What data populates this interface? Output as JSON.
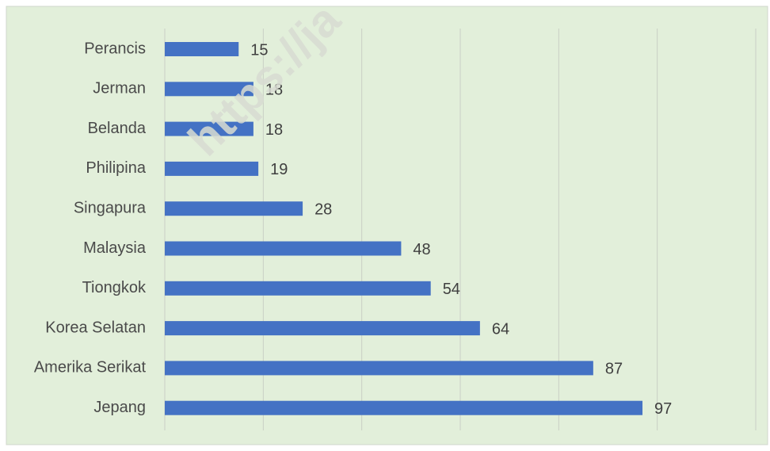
{
  "chart_data": {
    "type": "bar",
    "orientation": "horizontal",
    "categories": [
      "Perancis",
      "Jerman",
      "Belanda",
      "Philipina",
      "Singapura",
      "Malaysia",
      "Tiongkok",
      "Korea Selatan",
      "Amerika Serikat",
      "Jepang"
    ],
    "values": [
      15,
      18,
      18,
      19,
      28,
      48,
      54,
      64,
      87,
      97
    ],
    "xlim": [
      0,
      120
    ],
    "grid": true,
    "legend": "none",
    "watermark": "https://ja",
    "colors": {
      "bar": "#4472c4",
      "background": "#e2efda",
      "grid": "#c9cfc5",
      "border": "#d0d7cc"
    }
  }
}
